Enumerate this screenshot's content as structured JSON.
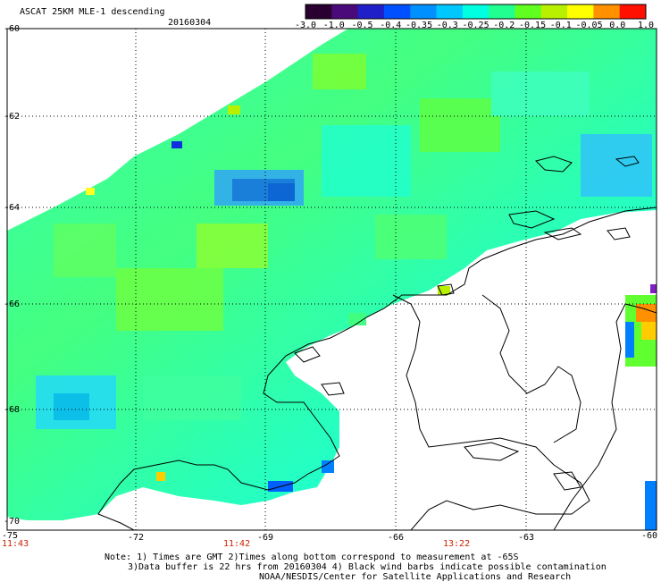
{
  "header": {
    "title": "ASCAT 25KM MLE-1 descending",
    "date": "20160304"
  },
  "colorbar": {
    "tick_labels": [
      "-3.0",
      "-1.0",
      "-0.5",
      "-0.4",
      "-0.35",
      "-0.3",
      "-0.25",
      "-0.2",
      "-0.15",
      "-0.1",
      "-0.05",
      "0.0",
      "1.0"
    ],
    "colors": [
      "#2a0030",
      "#4a0a7a",
      "#2020c8",
      "#0050ff",
      "#0090ff",
      "#00c8ff",
      "#00ffe0",
      "#20ff90",
      "#60ff20",
      "#b8f000",
      "#ffff00",
      "#ff9000",
      "#ff1000"
    ]
  },
  "map": {
    "lat_labels": [
      "-60",
      "-62",
      "-64",
      "-66",
      "-68",
      "-70"
    ],
    "lon_labels": [
      "-75",
      "-72",
      "-69",
      "-66",
      "-63",
      "-60"
    ],
    "time_labels": [
      "11:43",
      "11:42",
      "13:22"
    ]
  },
  "notes": {
    "line1": "Note: 1) Times are GMT 2)Times along bottom correspond to measurement at -65S",
    "line2": "3)Data buffer is 22 hrs from 20160304 4) Black wind barbs indicate possible contamination",
    "line3": "NOAA/NESDIS/Center for Satellite Applications and Research"
  }
}
